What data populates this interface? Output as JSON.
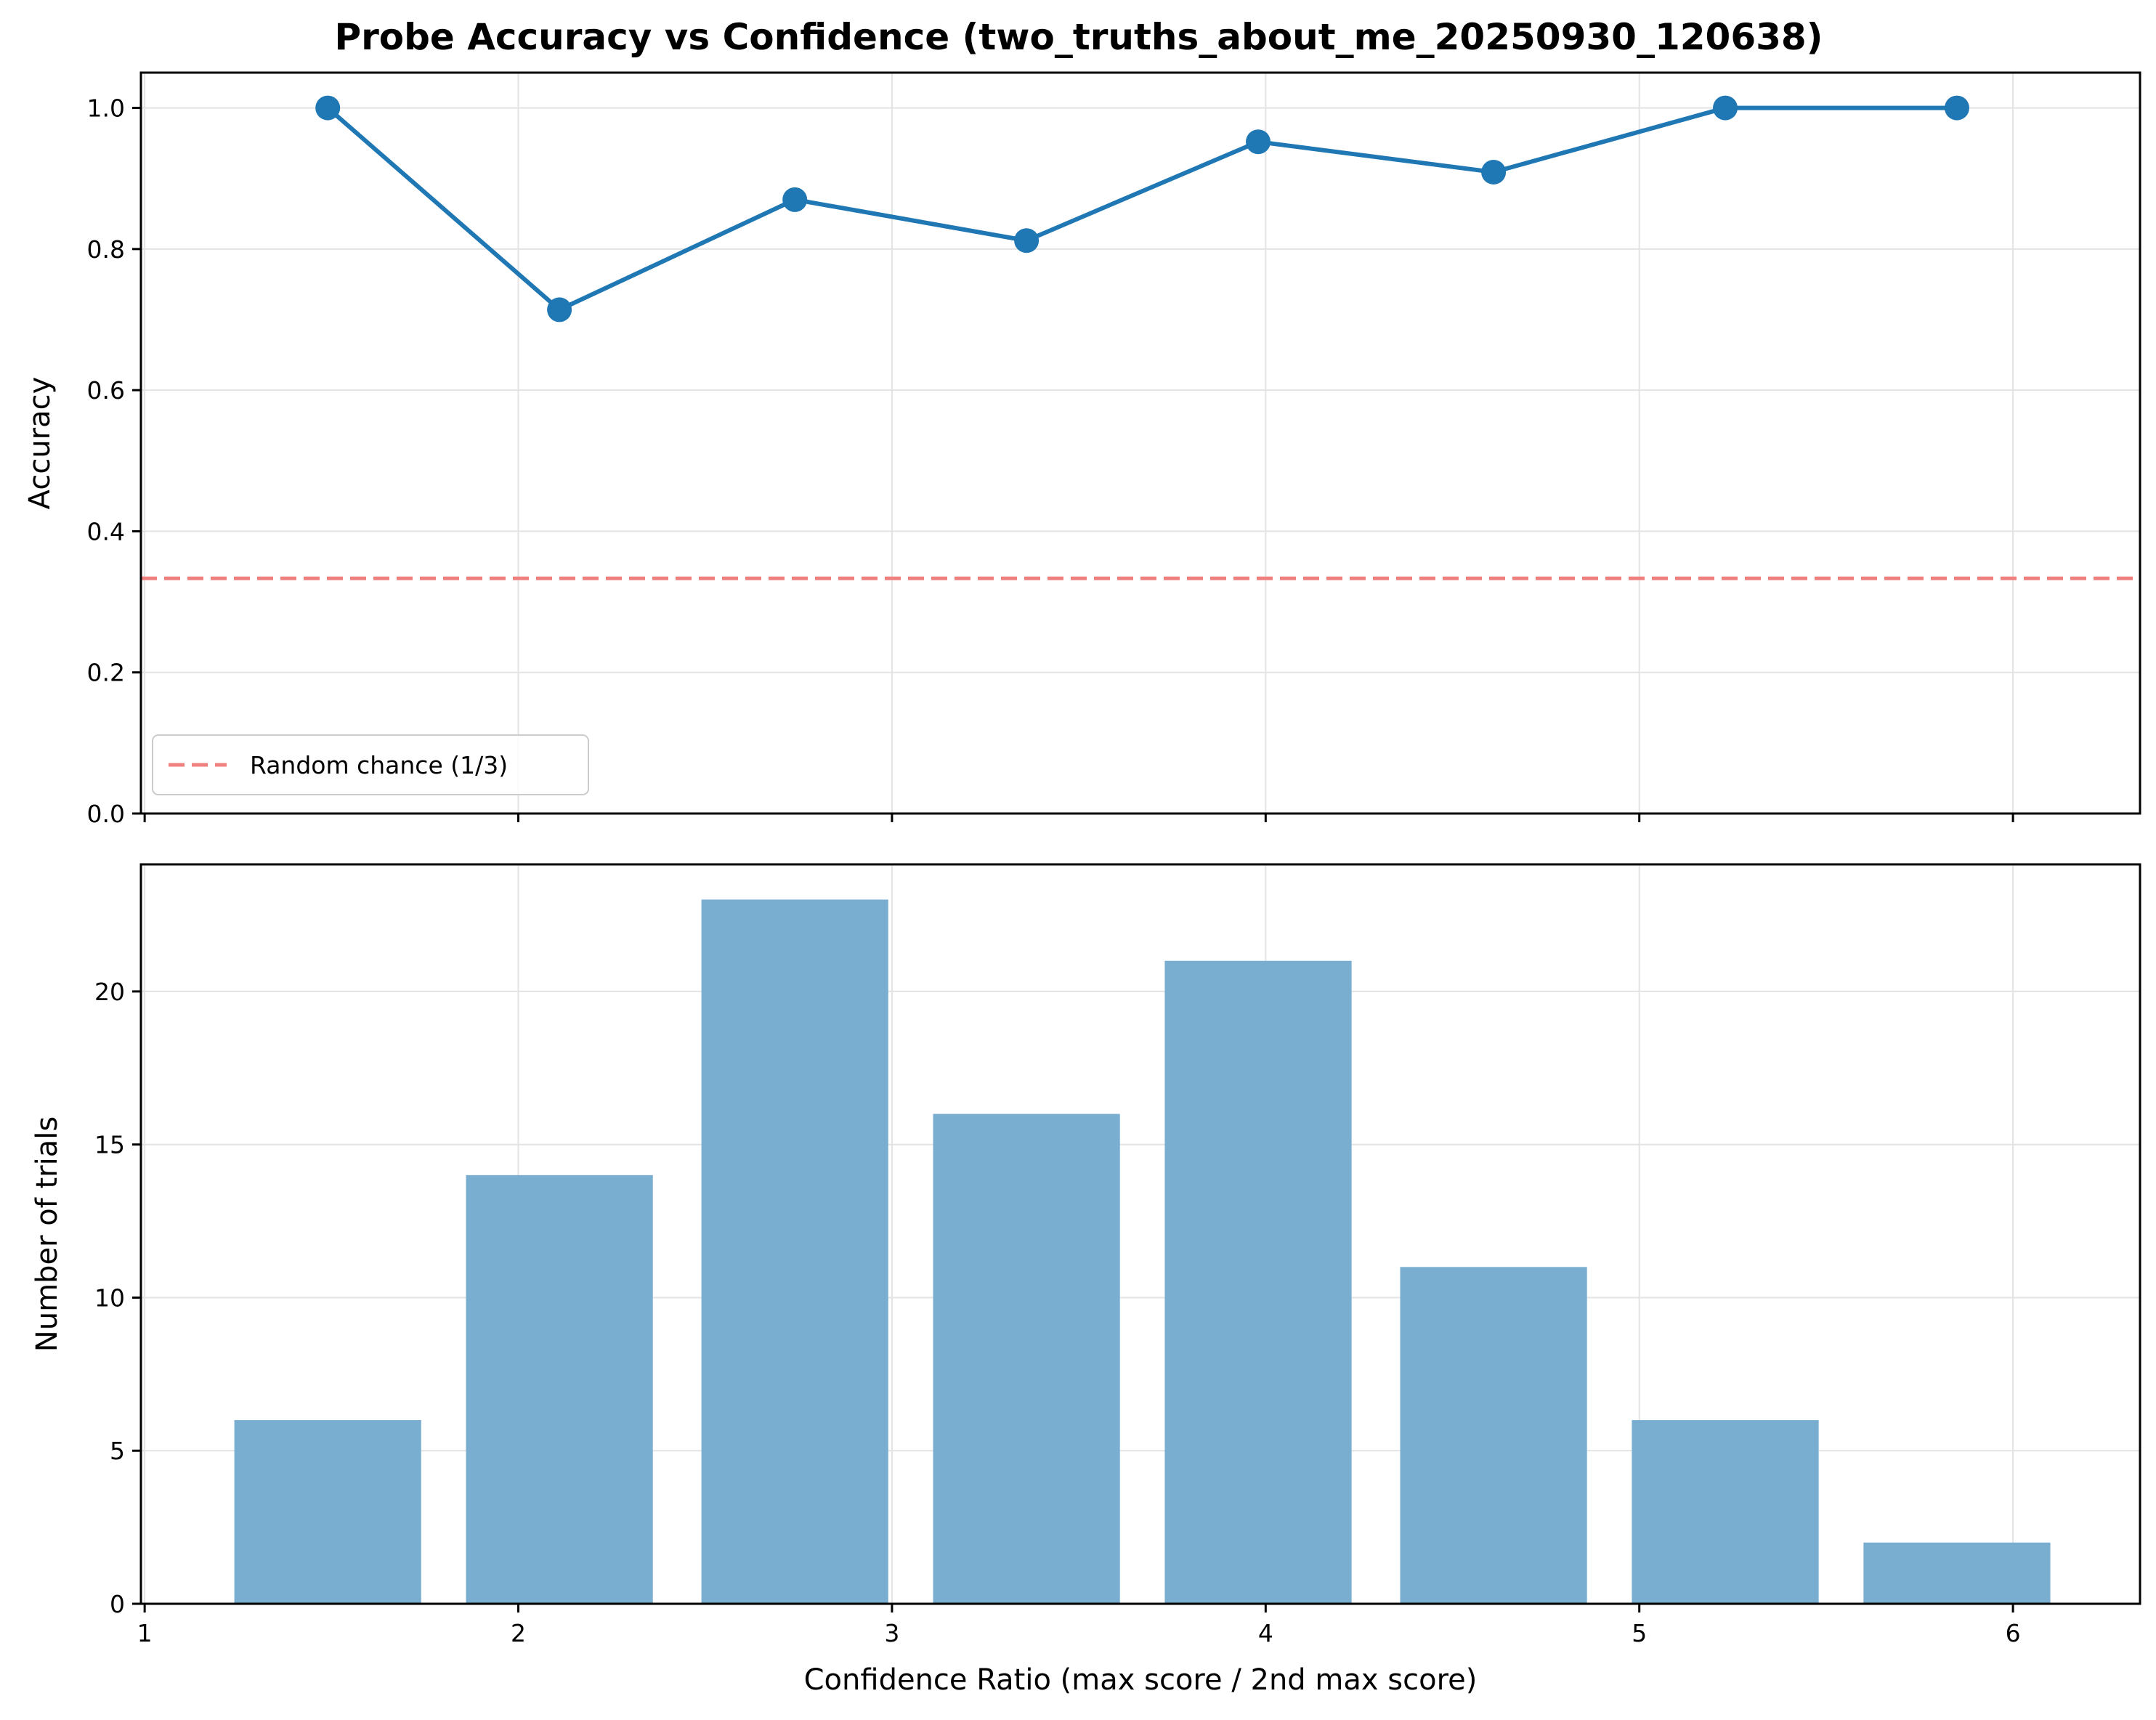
{
  "title": "Probe Accuracy vs Confidence (two_truths_about_me_20250930_120638)",
  "colors": {
    "line": "#1f77b4",
    "bar": "#7aaed1",
    "chance": "#f08080",
    "grid": "#e3e3e3"
  },
  "chart_data": [
    {
      "type": "line",
      "ylabel": "Accuracy",
      "xlabel": "",
      "xlim": [
        0.99,
        6.34
      ],
      "ylim": [
        0.0,
        1.05
      ],
      "x_ticks": [
        1,
        2,
        3,
        4,
        5,
        6
      ],
      "x_tick_labels_shown": false,
      "y_ticks": [
        0.0,
        0.2,
        0.4,
        0.6,
        0.8,
        1.0
      ],
      "y_tick_labels": [
        "0.0",
        "0.2",
        "0.4",
        "0.6",
        "0.8",
        "1.0"
      ],
      "grid": true,
      "legend_placement": "lower-left",
      "series": [
        {
          "x": [
            1.49,
            2.11,
            2.74,
            3.36,
            3.98,
            4.61,
            5.23,
            5.85
          ],
          "values": [
            1.0,
            0.714,
            0.87,
            0.812,
            0.952,
            0.909,
            1.0,
            1.0
          ]
        }
      ],
      "reference_line": {
        "name": "Random chance (1/3)",
        "y": 0.3333
      }
    },
    {
      "type": "bar",
      "ylabel": "Number of trials",
      "xlabel": "Confidence Ratio (max score / 2nd max score)",
      "xlim": [
        0.99,
        6.34
      ],
      "ylim": [
        0,
        24.15
      ],
      "x_ticks": [
        1,
        2,
        3,
        4,
        5,
        6
      ],
      "x_tick_labels": [
        "1",
        "2",
        "3",
        "4",
        "5",
        "6"
      ],
      "y_ticks": [
        0,
        5,
        10,
        15,
        20
      ],
      "y_tick_labels": [
        "0",
        "5",
        "10",
        "15",
        "20"
      ],
      "grid": true,
      "bar_width": 0.5,
      "x": [
        1.49,
        2.11,
        2.74,
        3.36,
        3.98,
        4.61,
        5.23,
        5.85
      ],
      "values": [
        6,
        14,
        23,
        16,
        21,
        11,
        6,
        2
      ]
    }
  ]
}
